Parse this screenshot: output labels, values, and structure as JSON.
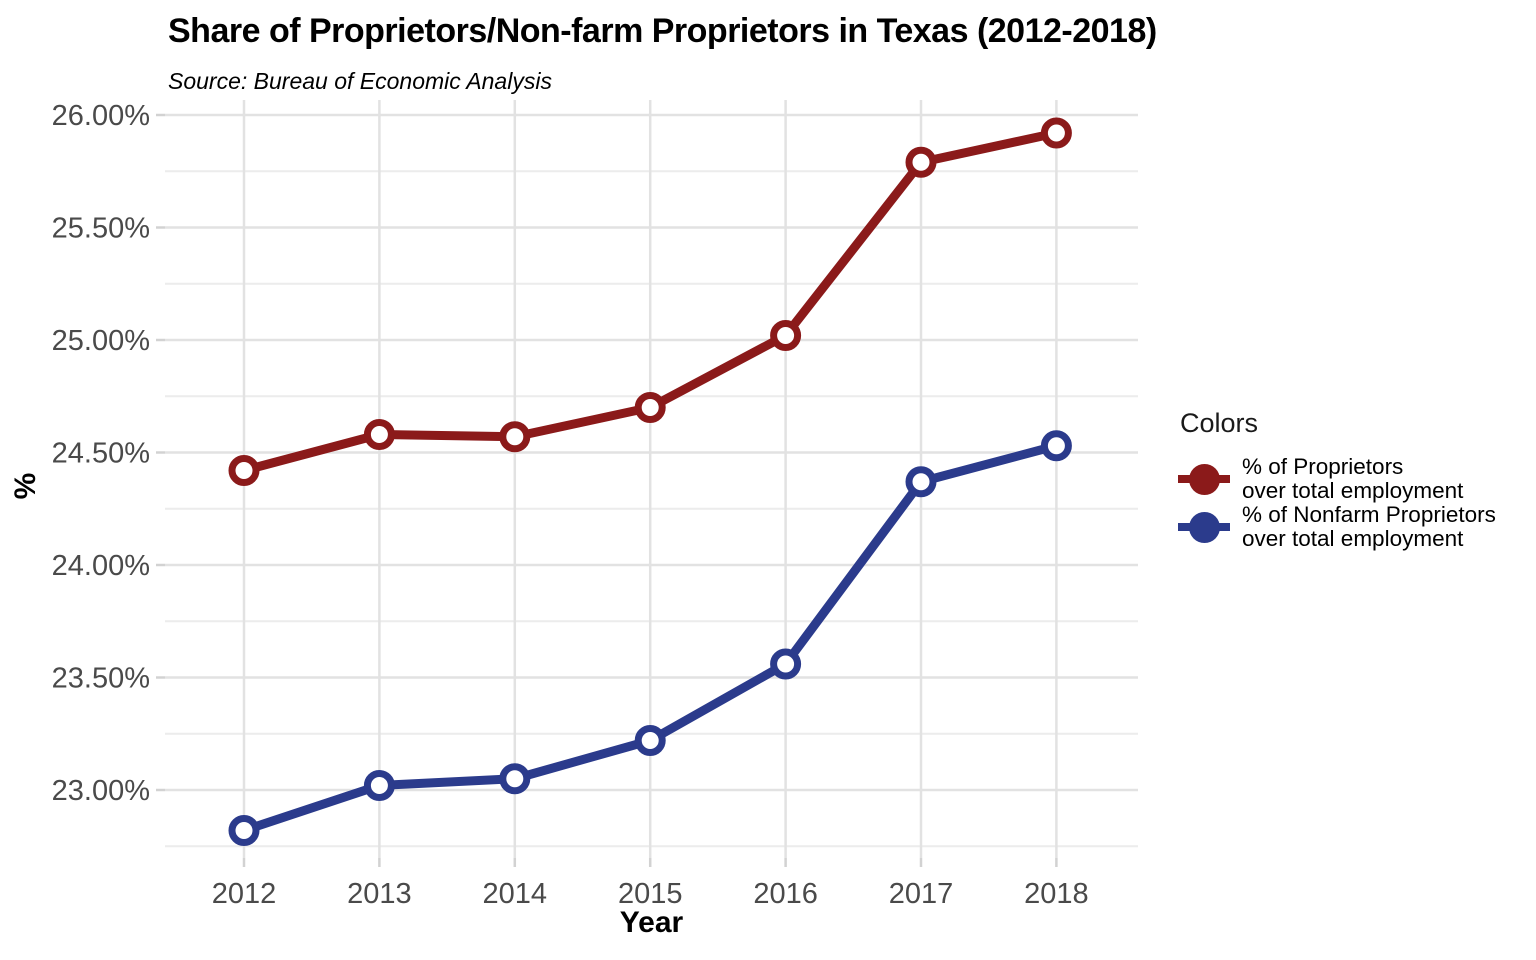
{
  "title": "Share of Proprietors/Non-farm Proprietors in Texas (2012-2018)",
  "subtitle": "Source: Bureau of Economic Analysis",
  "axes": {
    "x_title": "Year",
    "y_title": "%"
  },
  "legend": {
    "title": "Colors",
    "entries": [
      {
        "line1": "% of Proprietors",
        "line2": "over total employment",
        "color": "#8B1A1A"
      },
      {
        "line1": "% of Nonfarm Proprietors",
        "line2": "over total employment",
        "color": "#2B3B8C"
      }
    ]
  },
  "chart_data": {
    "type": "line",
    "title": "Share of Proprietors/Non-farm Proprietors in Texas (2012-2018)",
    "subtitle": "Source: Bureau of Economic Analysis",
    "xlabel": "Year",
    "ylabel": "%",
    "x": [
      2012,
      2013,
      2014,
      2015,
      2016,
      2017,
      2018
    ],
    "x_tick_labels": [
      "2012",
      "2013",
      "2014",
      "2015",
      "2016",
      "2017",
      "2018"
    ],
    "y_ticks": [
      26.0,
      25.5,
      25.0,
      24.5,
      24.0,
      23.5,
      23.0
    ],
    "y_tick_labels": [
      "26.00%",
      "25.50%",
      "25.00%",
      "24.50%",
      "24.00%",
      "23.50%",
      "23.00%"
    ],
    "y_minor_ticks": [
      25.75,
      25.25,
      24.75,
      24.25,
      23.75,
      23.25,
      22.75
    ],
    "ylim": [
      22.7,
      26.07
    ],
    "grid": true,
    "legend_position": "right",
    "marker": "open-circle",
    "series": [
      {
        "name": "% of Proprietors over total employment",
        "color": "#8B1A1A",
        "values": [
          24.42,
          24.58,
          24.57,
          24.7,
          25.02,
          25.79,
          25.92
        ]
      },
      {
        "name": "% of Nonfarm Proprietors over total employment",
        "color": "#2B3B8C",
        "values": [
          22.82,
          23.02,
          23.05,
          23.22,
          23.56,
          24.37,
          24.53
        ]
      }
    ],
    "colors": {
      "grid_major": "#E2E2E2",
      "grid_minor": "#ECECEC",
      "axis_tick": "#D2D2D2",
      "tick_text": "#4a4a4a"
    }
  }
}
